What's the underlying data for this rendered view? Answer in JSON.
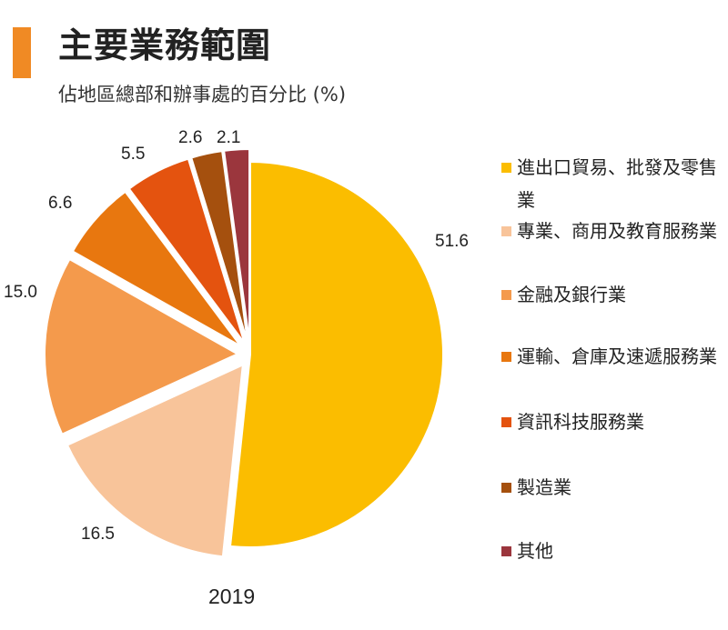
{
  "header": {
    "title": "主要業務範圍",
    "subtitle": "佔地區總部和辦事處的百分比 (%)",
    "accent_color": "#f08a24"
  },
  "chart_data": {
    "type": "pie",
    "title": "主要業務範圍",
    "subtitle": "佔地區總部和辦事處的百分比 (%)",
    "year_label": "2019",
    "legend_position": "right",
    "slices": [
      {
        "label": "進出口貿易、批發及零售業",
        "value": 51.6,
        "value_label": "51.6",
        "color": "#fbbd00",
        "exploded": false
      },
      {
        "label": "專業、商用及教育服務業",
        "value": 16.5,
        "value_label": "16.5",
        "color": "#f8c49a",
        "exploded": true
      },
      {
        "label": "金融及銀行業",
        "value": 15.0,
        "value_label": "15.0",
        "color": "#f49a4c",
        "exploded": true
      },
      {
        "label": "運輸、倉庫及速遞服務業",
        "value": 6.6,
        "value_label": "6.6",
        "color": "#e8770f",
        "exploded": true
      },
      {
        "label": "資訊科技服務業",
        "value": 5.5,
        "value_label": "5.5",
        "color": "#e4530f",
        "exploded": true
      },
      {
        "label": "製造業",
        "value": 2.6,
        "value_label": "2.6",
        "color": "#a5500e",
        "exploded": true
      },
      {
        "label": "其他",
        "value": 2.1,
        "value_label": "2.1",
        "color": "#9b363d",
        "exploded": true
      }
    ]
  }
}
